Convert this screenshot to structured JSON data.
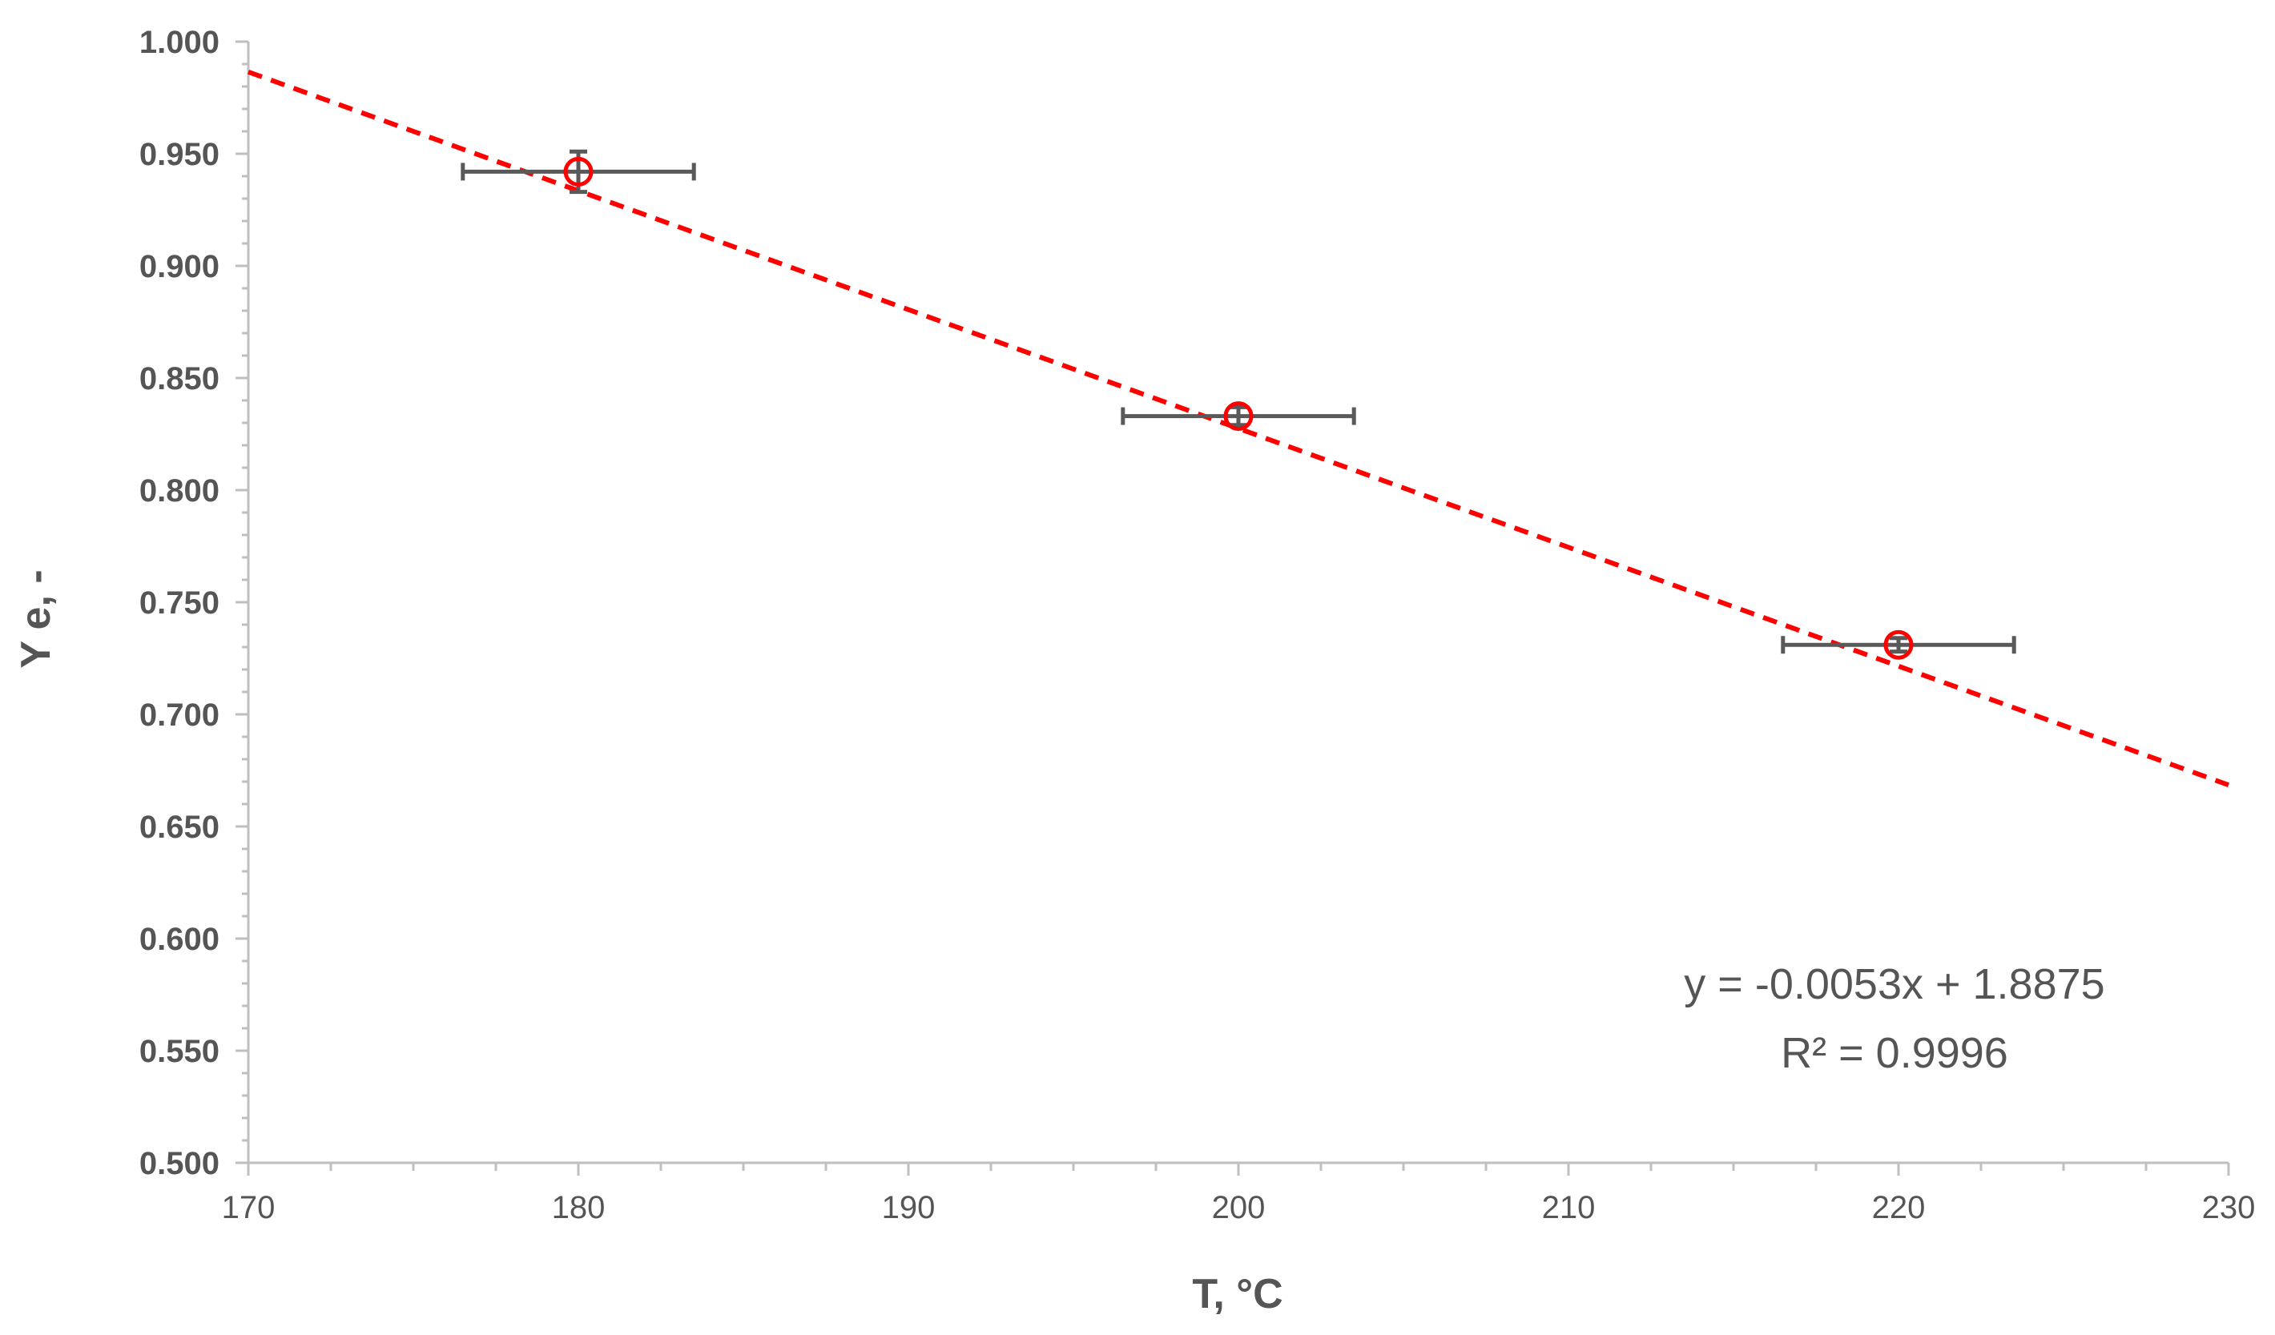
{
  "chart_data": {
    "type": "scatter",
    "xlabel": "T, °C",
    "ylabel": "Y e, -",
    "xlim": [
      170,
      230
    ],
    "ylim": [
      0.5,
      1.0
    ],
    "x_ticks": [
      "170",
      "180",
      "190",
      "200",
      "210",
      "220",
      "230"
    ],
    "y_ticks": [
      "0.500",
      "0.550",
      "0.600",
      "0.650",
      "0.700",
      "0.750",
      "0.800",
      "0.850",
      "0.900",
      "0.950",
      "1.000"
    ],
    "grid": false,
    "legend": "none",
    "series": [
      {
        "x": [
          180,
          200,
          220
        ],
        "y": [
          0.942,
          0.833,
          0.731
        ],
        "x_error": [
          3.5,
          3.5,
          3.5
        ],
        "y_error": [
          0.009,
          0.004,
          0.003
        ],
        "marker": "open-circle",
        "marker_color": "#ff0000",
        "error_bar_color": "#595959"
      }
    ],
    "trendline": {
      "type": "linear",
      "slope": -0.0053,
      "intercept": 1.8875,
      "style": "dashed",
      "color": "#ff0000",
      "equation_label": "y = -0.0053x + 1.8875",
      "r2_label": "R² = 0.9996"
    }
  }
}
